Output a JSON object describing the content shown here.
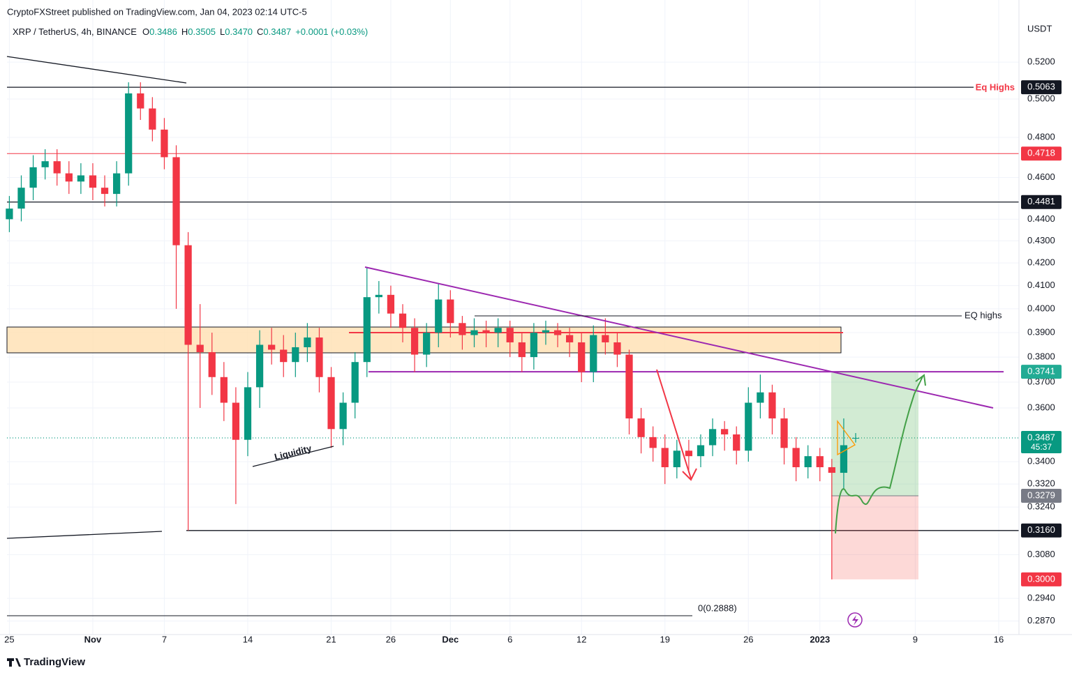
{
  "header": {
    "publisher": "CryptoFXStreet published on TradingView.com, Jan 04, 2023 02:14 UTC-5",
    "symbol": "XRP / TetherUS, 4h, BINANCE",
    "ohlc": [
      {
        "key": "O",
        "value": "0.3486"
      },
      {
        "key": "H",
        "value": "0.3505"
      },
      {
        "key": "L",
        "value": "0.3470"
      },
      {
        "key": "C",
        "value": "0.3487"
      }
    ],
    "change": "+0.0001 (+0.03%)"
  },
  "footer": {
    "brand": "TradingView"
  },
  "annotations": {
    "eq_highs_top": "Eq Highs",
    "eq_highs_mid": "EQ highs",
    "liquidity": "Liquidity",
    "fib_zero": "0(0.2888)"
  },
  "chart_data": {
    "type": "candlestick",
    "y_unit": "USDT",
    "log_scale": true,
    "grid": true,
    "x": [
      0,
      1,
      2,
      3,
      4,
      5,
      6,
      7,
      8,
      9,
      10,
      11,
      12,
      13,
      14,
      15,
      16,
      17,
      18,
      19,
      20,
      21,
      22,
      23,
      24,
      25,
      26,
      27,
      28,
      29,
      30,
      31,
      32,
      33,
      34,
      35,
      36,
      37,
      38,
      39,
      40,
      41,
      42,
      43,
      44,
      45,
      46,
      47,
      48,
      49,
      50,
      51,
      52,
      53,
      54,
      55,
      56,
      57,
      58,
      59,
      60,
      61,
      62,
      63,
      64,
      65,
      66,
      67,
      68,
      69,
      70,
      71
    ],
    "open": [
      0.44,
      0.445,
      0.455,
      0.465,
      0.468,
      0.462,
      0.458,
      0.461,
      0.455,
      0.452,
      0.462,
      0.503,
      0.495,
      0.484,
      0.47,
      0.428,
      0.385,
      0.382,
      0.372,
      0.362,
      0.348,
      0.368,
      0.385,
      0.383,
      0.378,
      0.384,
      0.388,
      0.372,
      0.352,
      0.362,
      0.378,
      0.405,
      0.406,
      0.398,
      0.392,
      0.381,
      0.39,
      0.404,
      0.394,
      0.389,
      0.391,
      0.39,
      0.392,
      0.386,
      0.38,
      0.39,
      0.391,
      0.389,
      0.386,
      0.374,
      0.389,
      0.386,
      0.381,
      0.356,
      0.349,
      0.345,
      0.338,
      0.344,
      0.342,
      0.346,
      0.352,
      0.35,
      0.344,
      0.362,
      0.366,
      0.356,
      0.345,
      0.338,
      0.342,
      0.338,
      0.336,
      0.3486
    ],
    "high": [
      0.451,
      0.461,
      0.471,
      0.474,
      0.474,
      0.468,
      0.467,
      0.467,
      0.461,
      0.468,
      0.509,
      0.509,
      0.501,
      0.49,
      0.476,
      0.434,
      0.402,
      0.39,
      0.378,
      0.368,
      0.374,
      0.391,
      0.392,
      0.389,
      0.39,
      0.394,
      0.392,
      0.376,
      0.366,
      0.382,
      0.418,
      0.412,
      0.41,
      0.402,
      0.396,
      0.394,
      0.411,
      0.408,
      0.397,
      0.396,
      0.395,
      0.396,
      0.395,
      0.39,
      0.394,
      0.395,
      0.394,
      0.392,
      0.39,
      0.393,
      0.396,
      0.39,
      0.383,
      0.36,
      0.353,
      0.35,
      0.348,
      0.348,
      0.35,
      0.356,
      0.355,
      0.353,
      0.368,
      0.373,
      0.369,
      0.36,
      0.349,
      0.346,
      0.345,
      0.341,
      0.356,
      0.3505
    ],
    "low": [
      0.434,
      0.439,
      0.449,
      0.459,
      0.456,
      0.452,
      0.452,
      0.449,
      0.446,
      0.446,
      0.456,
      0.489,
      0.478,
      0.464,
      0.4,
      0.316,
      0.36,
      0.365,
      0.355,
      0.325,
      0.342,
      0.36,
      0.377,
      0.372,
      0.372,
      0.378,
      0.366,
      0.345,
      0.346,
      0.356,
      0.372,
      0.398,
      0.392,
      0.386,
      0.374,
      0.376,
      0.384,
      0.388,
      0.383,
      0.384,
      0.384,
      0.384,
      0.38,
      0.374,
      0.375,
      0.385,
      0.384,
      0.38,
      0.37,
      0.37,
      0.381,
      0.376,
      0.35,
      0.343,
      0.34,
      0.332,
      0.334,
      0.336,
      0.338,
      0.342,
      0.344,
      0.339,
      0.34,
      0.356,
      0.35,
      0.339,
      0.333,
      0.334,
      0.333,
      0.3,
      0.33,
      0.347
    ],
    "close": [
      0.445,
      0.455,
      0.465,
      0.468,
      0.462,
      0.458,
      0.461,
      0.455,
      0.452,
      0.462,
      0.503,
      0.495,
      0.484,
      0.47,
      0.428,
      0.385,
      0.382,
      0.372,
      0.362,
      0.348,
      0.368,
      0.385,
      0.383,
      0.378,
      0.384,
      0.388,
      0.372,
      0.352,
      0.362,
      0.378,
      0.405,
      0.406,
      0.398,
      0.392,
      0.381,
      0.39,
      0.404,
      0.394,
      0.389,
      0.391,
      0.39,
      0.392,
      0.386,
      0.38,
      0.39,
      0.391,
      0.389,
      0.386,
      0.374,
      0.389,
      0.386,
      0.381,
      0.356,
      0.349,
      0.345,
      0.338,
      0.344,
      0.342,
      0.346,
      0.352,
      0.35,
      0.344,
      0.362,
      0.366,
      0.356,
      0.345,
      0.338,
      0.342,
      0.338,
      0.336,
      0.346,
      0.3487
    ],
    "up_color": "#089981",
    "down_color": "#f23645",
    "xlim": [
      -0.2,
      84.7
    ],
    "xticks": [
      {
        "value": 0,
        "label": "25"
      },
      {
        "value": 7,
        "label": "Nov"
      },
      {
        "value": 13,
        "label": "7"
      },
      {
        "value": 20,
        "label": "14"
      },
      {
        "value": 27,
        "label": "21"
      },
      {
        "value": 32,
        "label": "26"
      },
      {
        "value": 37,
        "label": "Dec"
      },
      {
        "value": 42,
        "label": "6"
      },
      {
        "value": 48,
        "label": "12"
      },
      {
        "value": 55,
        "label": "19"
      },
      {
        "value": 62,
        "label": "26"
      },
      {
        "value": 68,
        "label": "2023"
      },
      {
        "value": 76,
        "label": "9"
      },
      {
        "value": 83,
        "label": "16"
      }
    ],
    "ylim": [
      0.2829,
      0.5433
    ],
    "yticks": [
      {
        "value": 0.52,
        "label": "0.5200"
      },
      {
        "value": 0.5,
        "label": "0.5000"
      },
      {
        "value": 0.48,
        "label": "0.4800"
      },
      {
        "value": 0.46,
        "label": "0.4600"
      },
      {
        "value": 0.44,
        "label": "0.4400"
      },
      {
        "value": 0.43,
        "label": "0.4300"
      },
      {
        "value": 0.42,
        "label": "0.4200"
      },
      {
        "value": 0.41,
        "label": "0.4100"
      },
      {
        "value": 0.4,
        "label": "0.4000"
      },
      {
        "value": 0.39,
        "label": "0.3900"
      },
      {
        "value": 0.38,
        "label": "0.3800"
      },
      {
        "value": 0.37,
        "label": "0.3700"
      },
      {
        "value": 0.36,
        "label": "0.3600"
      },
      {
        "value": 0.34,
        "label": "0.3400"
      },
      {
        "value": 0.332,
        "label": "0.3320"
      },
      {
        "value": 0.324,
        "label": "0.3240"
      },
      {
        "value": 0.308,
        "label": "0.3080"
      },
      {
        "value": 0.294,
        "label": "0.2940"
      },
      {
        "value": 0.287,
        "label": "0.2870"
      }
    ],
    "price_labels": [
      {
        "value": 0.5063,
        "label": "0.5063",
        "color": "#131722"
      },
      {
        "value": 0.4718,
        "label": "0.4718",
        "color": "#f23645"
      },
      {
        "value": 0.4481,
        "label": "0.4481",
        "color": "#131722"
      },
      {
        "value": 0.3741,
        "label": "0.3741",
        "color": "#22ab94"
      },
      {
        "value": 0.3487,
        "label": "0.3487",
        "sublabel": "45:37",
        "color": "#089981"
      },
      {
        "value": 0.3279,
        "label": "0.3279",
        "color": "#787b86"
      },
      {
        "value": 0.316,
        "label": "0.3160",
        "color": "#131722"
      },
      {
        "value": 0.3,
        "label": "0.3000",
        "color": "#f23645"
      }
    ]
  }
}
